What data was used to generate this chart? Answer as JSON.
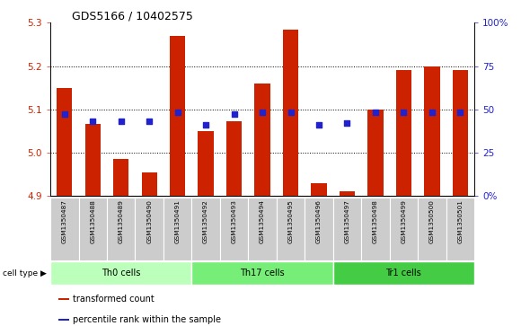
{
  "title": "GDS5166 / 10402575",
  "samples": [
    "GSM1350487",
    "GSM1350488",
    "GSM1350489",
    "GSM1350490",
    "GSM1350491",
    "GSM1350492",
    "GSM1350493",
    "GSM1350494",
    "GSM1350495",
    "GSM1350496",
    "GSM1350497",
    "GSM1350498",
    "GSM1350499",
    "GSM1350500",
    "GSM1350501"
  ],
  "transformed_count": [
    5.15,
    5.065,
    4.985,
    4.953,
    5.27,
    5.05,
    5.072,
    5.16,
    5.285,
    4.928,
    4.91,
    5.1,
    5.19,
    5.2,
    5.19
  ],
  "percentile_rank": [
    47,
    43,
    43,
    43,
    48,
    41,
    47,
    48,
    48,
    41,
    42,
    48,
    48,
    48,
    48
  ],
  "ylim_left": [
    4.9,
    5.3
  ],
  "ylim_right": [
    0,
    100
  ],
  "yticks_left": [
    4.9,
    5.0,
    5.1,
    5.2,
    5.3
  ],
  "yticks_right": [
    0,
    25,
    50,
    75,
    100
  ],
  "ytick_labels_right": [
    "0%",
    "25",
    "50",
    "75",
    "100%"
  ],
  "cell_groups": [
    {
      "label": "Th0 cells",
      "start": 0,
      "end": 4,
      "color": "#bbffbb"
    },
    {
      "label": "Th17 cells",
      "start": 5,
      "end": 9,
      "color": "#77ee77"
    },
    {
      "label": "Tr1 cells",
      "start": 10,
      "end": 14,
      "color": "#44cc44"
    }
  ],
  "bar_color": "#cc2200",
  "dot_color": "#2222cc",
  "bar_width": 0.55,
  "tick_bg_color": "#cccccc",
  "legend_items": [
    "transformed count",
    "percentile rank within the sample"
  ],
  "legend_colors": [
    "#cc2200",
    "#2222cc"
  ],
  "cell_type_label": "cell type",
  "ylabel_left_color": "#cc2200",
  "ylabel_right_color": "#2222cc",
  "title_fontsize": 9
}
